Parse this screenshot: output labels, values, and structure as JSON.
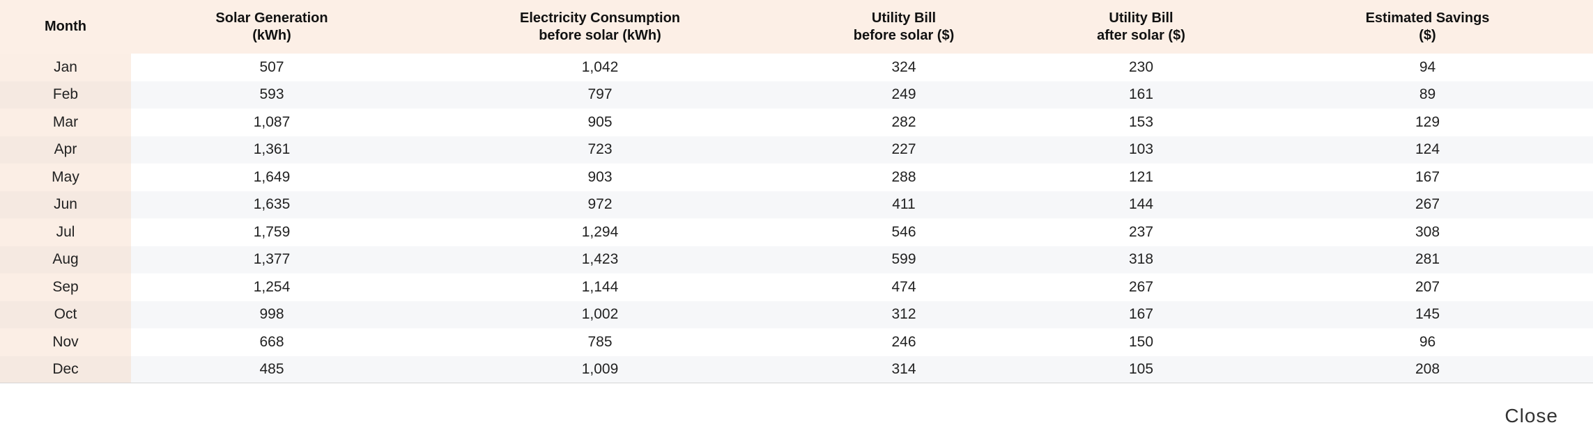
{
  "table": {
    "headers": [
      {
        "line1": "Month",
        "line2": ""
      },
      {
        "line1": "Solar Generation",
        "line2": "(kWh)"
      },
      {
        "line1": "Electricity Consumption",
        "line2": "before solar (kWh)"
      },
      {
        "line1": "Utility Bill",
        "line2": "before solar ($)"
      },
      {
        "line1": "Utility Bill",
        "line2": "after solar ($)"
      },
      {
        "line1": "Estimated Savings",
        "line2": "($)"
      }
    ],
    "rows": [
      [
        "Jan",
        "507",
        "1,042",
        "324",
        "230",
        "94"
      ],
      [
        "Feb",
        "593",
        "797",
        "249",
        "161",
        "89"
      ],
      [
        "Mar",
        "1,087",
        "905",
        "282",
        "153",
        "129"
      ],
      [
        "Apr",
        "1,361",
        "723",
        "227",
        "103",
        "124"
      ],
      [
        "May",
        "1,649",
        "903",
        "288",
        "121",
        "167"
      ],
      [
        "Jun",
        "1,635",
        "972",
        "411",
        "144",
        "267"
      ],
      [
        "Jul",
        "1,759",
        "1,294",
        "546",
        "237",
        "308"
      ],
      [
        "Aug",
        "1,377",
        "1,423",
        "599",
        "318",
        "281"
      ],
      [
        "Sep",
        "1,254",
        "1,144",
        "474",
        "267",
        "207"
      ],
      [
        "Oct",
        "998",
        "1,002",
        "312",
        "167",
        "145"
      ],
      [
        "Nov",
        "668",
        "785",
        "246",
        "150",
        "96"
      ],
      [
        "Dec",
        "485",
        "1,009",
        "314",
        "105",
        "208"
      ]
    ]
  },
  "footer": {
    "close_label": "Close"
  },
  "colors": {
    "header_background": "#fcefe6",
    "month_column_background": "#fbeee5",
    "row_stripe": "#f6f7f9"
  }
}
